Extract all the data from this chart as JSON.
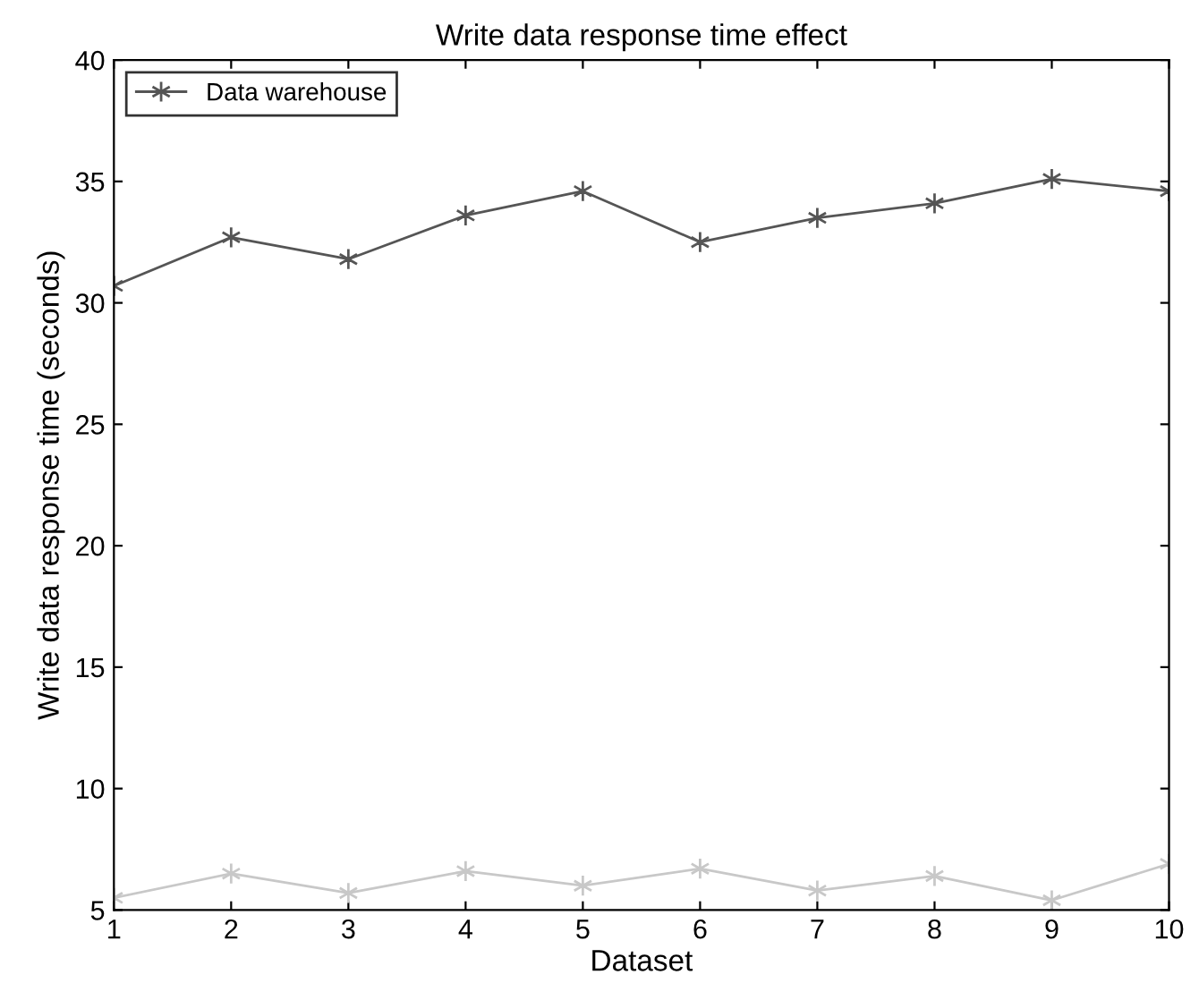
{
  "chart_data": {
    "type": "line",
    "title": "Write data response time effect",
    "xlabel": "Dataset",
    "ylabel": "Write data response time (seconds)",
    "x": [
      1,
      2,
      3,
      4,
      5,
      6,
      7,
      8,
      9,
      10
    ],
    "series": [
      {
        "color": "#c8c8c8",
        "values": [
          5.5,
          6.5,
          5.7,
          6.6,
          6.0,
          6.7,
          5.8,
          6.4,
          5.4,
          6.9
        ]
      },
      {
        "name": "Data warehouse",
        "color": "#555555",
        "values": [
          30.7,
          32.7,
          31.8,
          33.6,
          34.6,
          32.5,
          33.5,
          34.1,
          35.1,
          34.6
        ]
      }
    ],
    "xlim": [
      1,
      10
    ],
    "xticks": [
      1,
      2,
      3,
      4,
      5,
      6,
      7,
      8,
      9,
      10
    ],
    "ylim": [
      5,
      40
    ],
    "yticks": [
      5,
      10,
      15,
      20,
      25,
      30,
      35,
      40
    ],
    "marker": "cross",
    "legend": "top left",
    "grid": false
  }
}
